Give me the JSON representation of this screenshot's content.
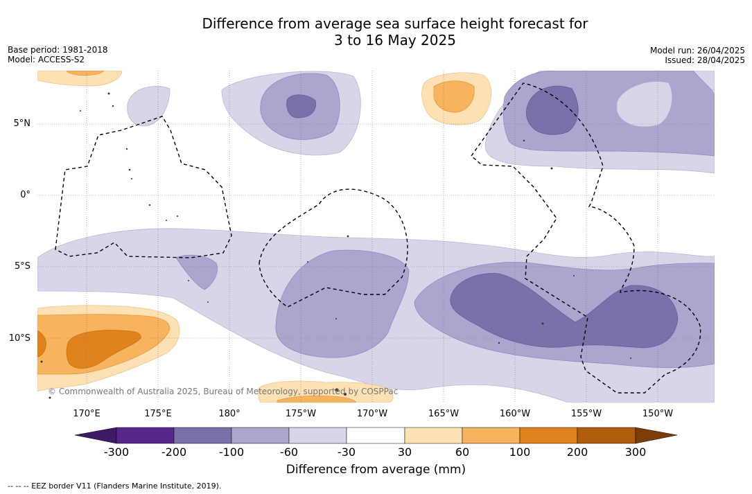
{
  "title_line1": "Difference from average sea surface height forecast for",
  "title_line2": "3 to 16 May 2025",
  "base_period": "Base period: 1981-2018",
  "model": "Model: ACCESS-S2",
  "model_run": "Model run: 26/04/2025",
  "issued": "Issued: 28/04/2025",
  "lat_labels": [
    "5°N",
    "0°",
    "5°S",
    "10°S"
  ],
  "lon_labels": [
    "170°E",
    "175°E",
    "180°",
    "175°W",
    "170°W",
    "165°W",
    "160°W",
    "155°W",
    "150°W"
  ],
  "credit": "© Commonwealth of Australia 2025, Bureau of Meteorology, supported by COSPPac",
  "colorbar": {
    "title": "Difference from average (mm)",
    "ticks": [
      "-300",
      "-200",
      "-100",
      "-60",
      "-30",
      "30",
      "60",
      "100",
      "200",
      "300"
    ],
    "colors": [
      "#3f1a66",
      "#55288a",
      "#7c70ab",
      "#aca6cf",
      "#d7d6e9",
      "#ffffff",
      "#fde1b4",
      "#f7b35d",
      "#e1831c",
      "#b05d0d",
      "#7d3d08"
    ]
  },
  "footnote": "--  --  -- EEZ border V11 (Flanders Marine Institute, 2019)."
}
